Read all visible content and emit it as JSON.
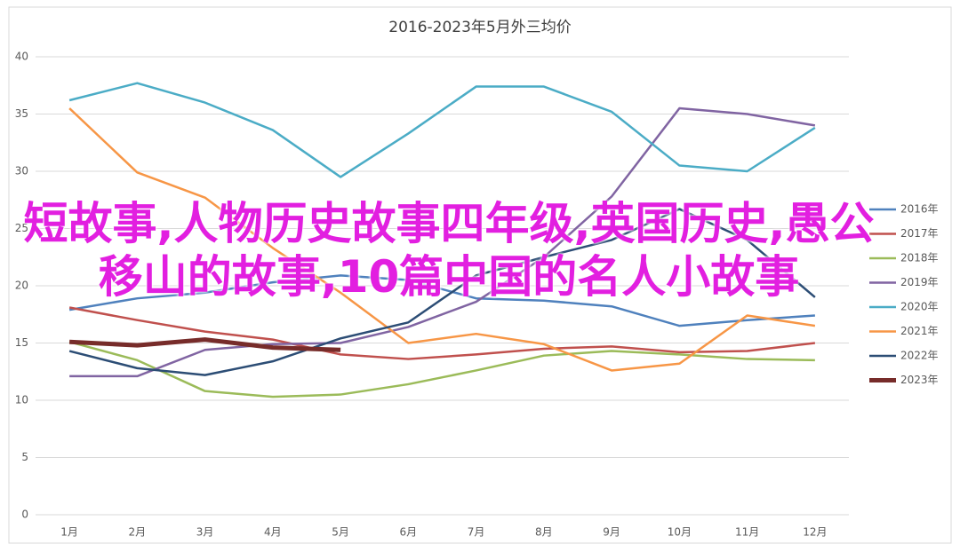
{
  "chart_data": {
    "type": "line",
    "title": "2016-2023年5月外三均价",
    "annotation": "短故事,人物历史故事四年级,英国历史,愚公移山的故事,10篇中国的名人小故事",
    "categories": [
      "1月",
      "2月",
      "3月",
      "4月",
      "5月",
      "6月",
      "7月",
      "8月",
      "9月",
      "10月",
      "11月",
      "12月"
    ],
    "ylim": [
      0,
      40
    ],
    "yticks": [
      0,
      5,
      10,
      15,
      20,
      25,
      30,
      35,
      40
    ],
    "grid": true,
    "legend": "right",
    "series": [
      {
        "name": "2016年",
        "color": "#4f81bd",
        "values": [
          17.9,
          18.9,
          19.4,
          20.3,
          20.9,
          20.5,
          18.9,
          18.7,
          18.2,
          16.5,
          17.0,
          17.4
        ]
      },
      {
        "name": "2017年",
        "color": "#c0504d",
        "values": [
          18.1,
          17.0,
          16.0,
          15.3,
          14.0,
          13.6,
          14.0,
          14.5,
          14.7,
          14.2,
          14.3,
          15.0
        ]
      },
      {
        "name": "2018年",
        "color": "#9bbb59",
        "values": [
          15.1,
          13.5,
          10.8,
          10.3,
          10.5,
          11.4,
          12.6,
          13.9,
          14.3,
          14.0,
          13.6,
          13.5
        ]
      },
      {
        "name": "2019年",
        "color": "#8064a2",
        "values": [
          12.1,
          12.1,
          14.4,
          14.9,
          15.0,
          16.4,
          18.6,
          22.5,
          27.8,
          35.5,
          35.0,
          34.0
        ]
      },
      {
        "name": "2020年",
        "color": "#4bacc6",
        "values": [
          36.2,
          37.7,
          36.0,
          33.6,
          29.5,
          33.3,
          37.4,
          37.4,
          35.2,
          30.5,
          30.0,
          33.8
        ]
      },
      {
        "name": "2021年",
        "color": "#f79646",
        "values": [
          35.5,
          29.9,
          27.7,
          23.3,
          19.4,
          15.0,
          15.8,
          14.9,
          12.6,
          13.2,
          17.4,
          16.5
        ]
      },
      {
        "name": "2022年",
        "color": "#2c4d75",
        "values": [
          14.3,
          12.8,
          12.2,
          13.4,
          15.4,
          16.8,
          20.9,
          22.5,
          24.0,
          26.7,
          24.0,
          19.0
        ]
      },
      {
        "name": "2023年",
        "color": "#772c2a",
        "values": [
          15.1,
          14.8,
          15.3,
          14.6,
          14.4,
          null,
          null,
          null,
          null,
          null,
          null,
          null
        ]
      }
    ]
  }
}
